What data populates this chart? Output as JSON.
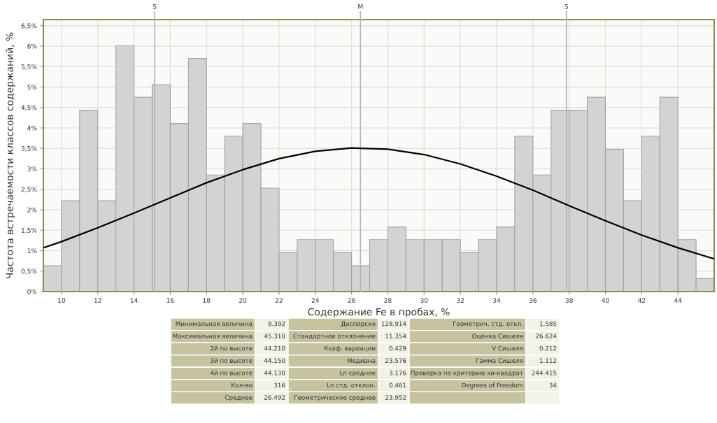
{
  "chart_data": [
    {
      "type": "histogram",
      "xlabel": "Содержание Fe в пробах, %",
      "ylabel": "Частота встречаемости классов содержаний, %",
      "bins": [
        9,
        10,
        11,
        12,
        13,
        14,
        15,
        16,
        17,
        18,
        19,
        20,
        21,
        22,
        23,
        24,
        25,
        26,
        27,
        28,
        29,
        30,
        31,
        32,
        33,
        34,
        35,
        36,
        37,
        38,
        39,
        40,
        41,
        42,
        43,
        44,
        45,
        46
      ],
      "values": [
        0.63,
        2.22,
        4.43,
        2.22,
        6.01,
        4.75,
        5.06,
        4.11,
        5.7,
        2.85,
        3.8,
        4.11,
        2.53,
        0.95,
        1.27,
        1.27,
        0.95,
        0.63,
        1.27,
        1.58,
        1.27,
        1.27,
        1.27,
        0.95,
        1.27,
        1.58,
        3.8,
        2.85,
        4.43,
        4.43,
        4.75,
        3.48,
        2.22,
        3.8,
        4.75,
        1.27,
        0.32
      ],
      "color": "#d3d3d3",
      "series": [
        {
          "type": "line",
          "color": "#000000",
          "x": [
            9,
            10,
            12,
            14,
            16,
            18,
            20,
            22,
            24,
            26,
            28,
            30,
            32,
            34,
            36,
            38,
            40,
            42,
            44,
            46
          ],
          "values": [
            1.07,
            1.22,
            1.56,
            1.92,
            2.29,
            2.66,
            2.98,
            3.25,
            3.43,
            3.51,
            3.48,
            3.35,
            3.12,
            2.82,
            2.48,
            2.1,
            1.73,
            1.38,
            1.07,
            0.8
          ]
        }
      ],
      "xlim": [
        9,
        46
      ],
      "xticks": [
        10,
        12,
        14,
        16,
        18,
        20,
        22,
        24,
        26,
        28,
        30,
        32,
        34,
        36,
        38,
        40,
        42,
        44
      ],
      "ylim": [
        0,
        6.65
      ],
      "yticks": [
        {
          "value": 0,
          "label": "0%"
        },
        {
          "value": 0.5,
          "label": "0,5%"
        },
        {
          "value": 1,
          "label": "1%"
        },
        {
          "value": 1.5,
          "label": "1,5%"
        },
        {
          "value": 2,
          "label": "2%"
        },
        {
          "value": 2.5,
          "label": "2,5%"
        },
        {
          "value": 3,
          "label": "3%"
        },
        {
          "value": 3.5,
          "label": "3,5%"
        },
        {
          "value": 4,
          "label": "4%"
        },
        {
          "value": 4.5,
          "label": "4,5%"
        },
        {
          "value": 5,
          "label": "5%"
        },
        {
          "value": 5.5,
          "label": "5,5%"
        },
        {
          "value": 6,
          "label": "6%"
        },
        {
          "value": 6.5,
          "label": "6,5%"
        }
      ],
      "grid": true,
      "ref_lines": [
        {
          "axis": "x",
          "value": 15.14,
          "label": "S",
          "color": "#b4b4b4"
        },
        {
          "axis": "x",
          "value": 26.49,
          "label": "M",
          "color": "#b4b4b4"
        },
        {
          "axis": "x",
          "value": 37.85,
          "label": "S",
          "color": "#b4b4b4"
        }
      ]
    },
    {
      "type": "other",
      "annotations": [
        "Минимальная величина",
        "9.392",
        "Максимальная величина",
        "45.310",
        "2й по высоте",
        "44.210",
        "3й по высоте",
        "44.150",
        "4й по высоте",
        "44.130",
        "Кол-во",
        "316",
        "Среднее",
        "26.492",
        "Дисперсия",
        "128.914",
        "Стандартное отклонение",
        "11.354",
        "Коэф. вариации",
        "0.429",
        "Медиана",
        "23.576",
        "Ln среднее",
        "3.176",
        "Ln стд. отклон.",
        "0.461",
        "Геометрическое среднее",
        "23.952",
        "Геометрич. стд. откл.",
        "1.585",
        "Оценка Сишеля",
        "26.624",
        "V Сишеля",
        "0.212",
        "Гамма Сишеля",
        "1.112",
        "Проверка по критерию хи-квадрат",
        "244.415",
        "Degrees of Freedom",
        "34"
      ]
    }
  ]
}
